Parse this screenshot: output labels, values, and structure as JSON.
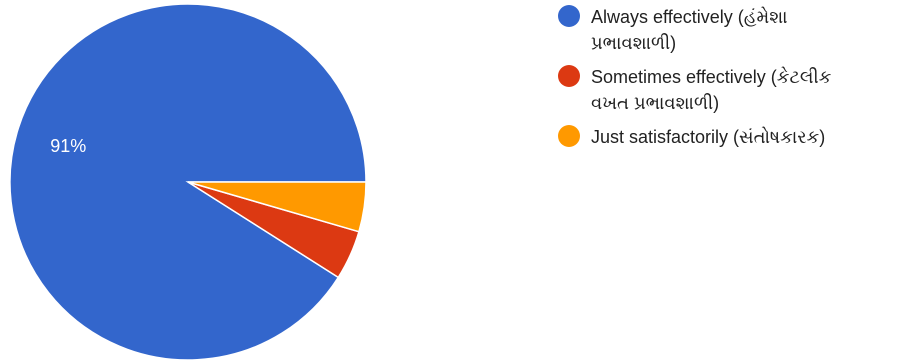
{
  "chart_data": {
    "type": "pie",
    "title": "",
    "categories": [
      "Always effectively (હંમેશા\nપ્રભાવશાળી)",
      "Sometimes effectively (કેટલીક\nવખત પ્રભાવશાળી)",
      "Just satisfactorily (સંતોષકારક)"
    ],
    "values": [
      91,
      4.5,
      4.5
    ],
    "colors": [
      "#3366cc",
      "#dc3912",
      "#ff9900"
    ],
    "data_labels": [
      "91%",
      "",
      ""
    ],
    "legend_position": "right",
    "start_angle_deg": 0,
    "direction": "counterclockwise"
  }
}
